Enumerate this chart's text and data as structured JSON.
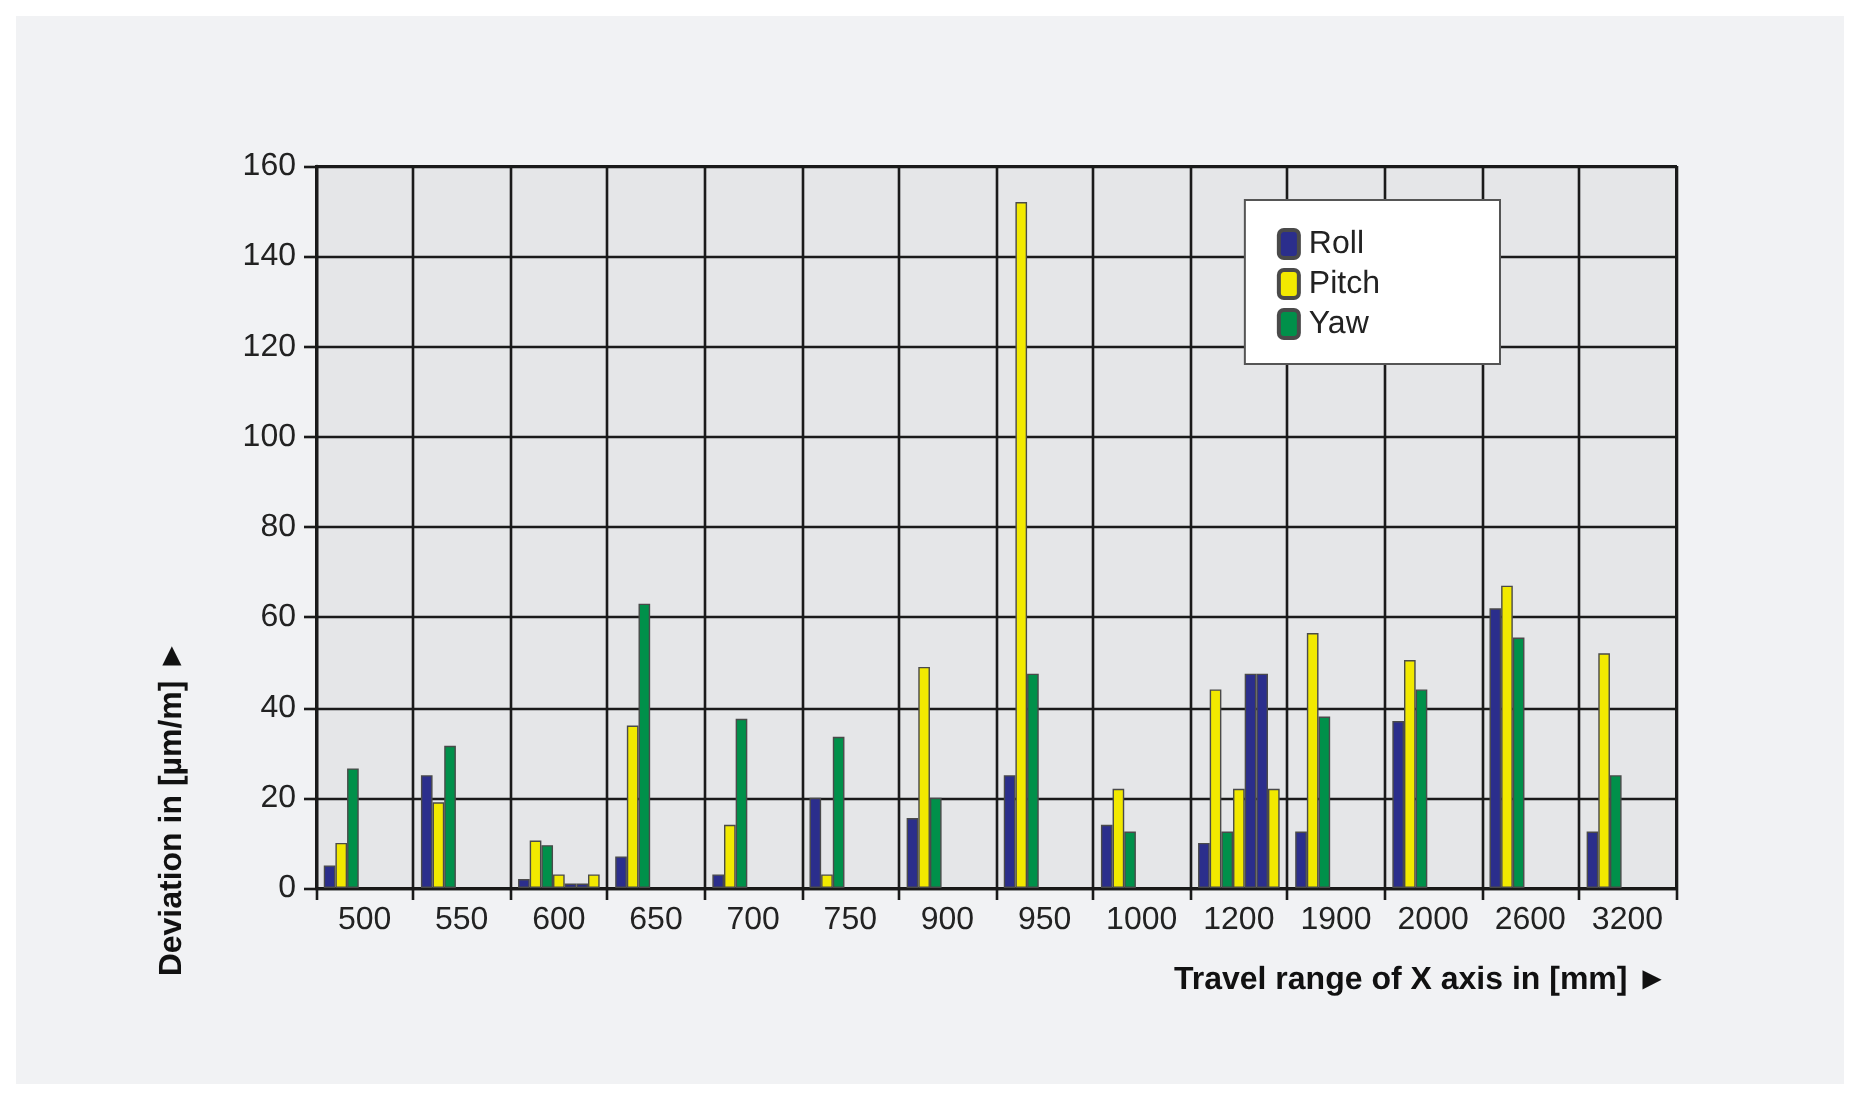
{
  "chart_data": {
    "type": "bar",
    "xlabel": "Travel range of X axis in [mm] ►",
    "ylabel": "Deviation in [µm/m] ►",
    "categories": [
      "500",
      "550",
      "600",
      "650",
      "700",
      "750",
      "900",
      "950",
      "1000",
      "1200",
      "1900",
      "2000",
      "2600",
      "3200"
    ],
    "series": [
      {
        "name": "Roll",
        "color": "#2b2e8c",
        "values": [
          5,
          25,
          2,
          7,
          3,
          20,
          15.5,
          25,
          14,
          10,
          12.5,
          37,
          62,
          12.5
        ]
      },
      {
        "name": "Pitch",
        "color": "#f2e900",
        "values": [
          10,
          19,
          10.5,
          36,
          14,
          3,
          49,
          152,
          22,
          44,
          56.5,
          50.5,
          67,
          52
        ]
      },
      {
        "name": "Yaw",
        "color": "#00904a",
        "values": [
          26.5,
          31.5,
          9.5,
          63,
          37.5,
          33.5,
          20,
          47.5,
          12.5,
          12.5,
          38,
          44,
          55.5,
          25
        ]
      },
      {
        "color": "#f2e900",
        "values": [
          null,
          null,
          3,
          null,
          null,
          null,
          null,
          null,
          null,
          22,
          null,
          null,
          null,
          null
        ]
      },
      {
        "color": "#2b2e8c",
        "values": [
          null,
          null,
          1,
          null,
          null,
          null,
          null,
          null,
          null,
          47.5,
          null,
          null,
          null,
          null
        ]
      },
      {
        "color": "#2b2e8c",
        "values": [
          null,
          null,
          1,
          null,
          null,
          null,
          null,
          null,
          null,
          47.5,
          null,
          null,
          null,
          null
        ]
      },
      {
        "color": "#f2e900",
        "values": [
          null,
          null,
          3,
          null,
          null,
          null,
          null,
          null,
          null,
          22,
          null,
          null,
          null,
          null
        ]
      }
    ],
    "ylim": [
      0,
      160
    ],
    "yticks": [
      0,
      20,
      40,
      60,
      80,
      100,
      120,
      140,
      160
    ],
    "grid": true,
    "legend": "top right"
  }
}
